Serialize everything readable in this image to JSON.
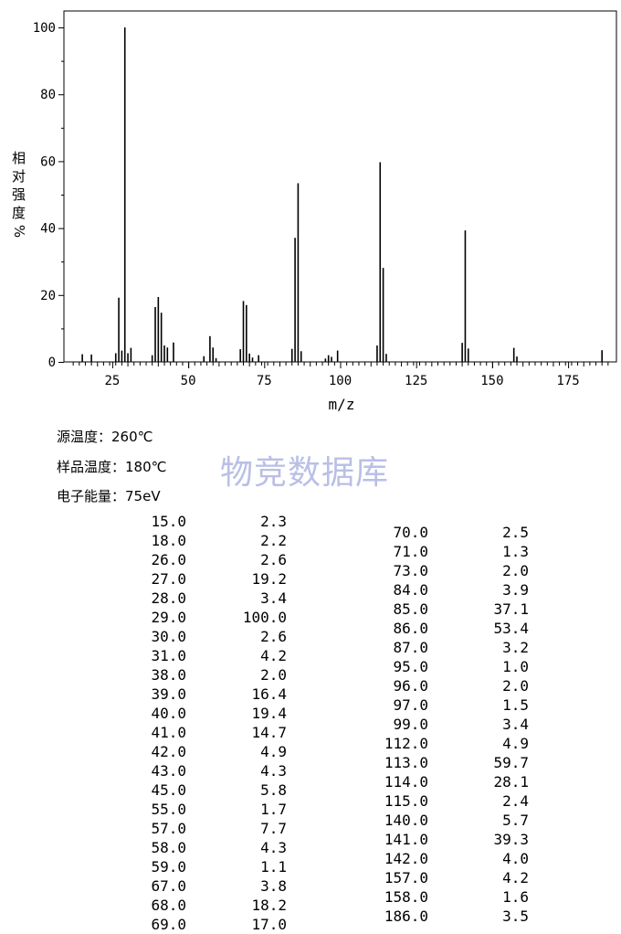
{
  "chart_data": {
    "type": "bar",
    "xlabel": "m/z",
    "ylabel": "相对强度%",
    "xlim": [
      10,
      190
    ],
    "ylim": [
      0,
      100
    ],
    "x_ticks": [
      25,
      50,
      75,
      100,
      125,
      150,
      175
    ],
    "y_ticks": [
      0,
      20,
      40,
      60,
      80,
      100
    ],
    "grid": false,
    "peaks": [
      {
        "mz": 15.0,
        "abundance": 2.3
      },
      {
        "mz": 18.0,
        "abundance": 2.2
      },
      {
        "mz": 26.0,
        "abundance": 2.6
      },
      {
        "mz": 27.0,
        "abundance": 19.2
      },
      {
        "mz": 28.0,
        "abundance": 3.4
      },
      {
        "mz": 29.0,
        "abundance": 100.0
      },
      {
        "mz": 30.0,
        "abundance": 2.6
      },
      {
        "mz": 31.0,
        "abundance": 4.2
      },
      {
        "mz": 38.0,
        "abundance": 2.0
      },
      {
        "mz": 39.0,
        "abundance": 16.4
      },
      {
        "mz": 40.0,
        "abundance": 19.4
      },
      {
        "mz": 41.0,
        "abundance": 14.7
      },
      {
        "mz": 42.0,
        "abundance": 4.9
      },
      {
        "mz": 43.0,
        "abundance": 4.3
      },
      {
        "mz": 45.0,
        "abundance": 5.8
      },
      {
        "mz": 55.0,
        "abundance": 1.7
      },
      {
        "mz": 57.0,
        "abundance": 7.7
      },
      {
        "mz": 58.0,
        "abundance": 4.3
      },
      {
        "mz": 59.0,
        "abundance": 1.1
      },
      {
        "mz": 67.0,
        "abundance": 3.8
      },
      {
        "mz": 68.0,
        "abundance": 18.2
      },
      {
        "mz": 69.0,
        "abundance": 17.0
      },
      {
        "mz": 70.0,
        "abundance": 2.5
      },
      {
        "mz": 71.0,
        "abundance": 1.3
      },
      {
        "mz": 73.0,
        "abundance": 2.0
      },
      {
        "mz": 84.0,
        "abundance": 3.9
      },
      {
        "mz": 85.0,
        "abundance": 37.1
      },
      {
        "mz": 86.0,
        "abundance": 53.4
      },
      {
        "mz": 87.0,
        "abundance": 3.2
      },
      {
        "mz": 95.0,
        "abundance": 1.0
      },
      {
        "mz": 96.0,
        "abundance": 2.0
      },
      {
        "mz": 97.0,
        "abundance": 1.5
      },
      {
        "mz": 99.0,
        "abundance": 3.4
      },
      {
        "mz": 112.0,
        "abundance": 4.9
      },
      {
        "mz": 113.0,
        "abundance": 59.7
      },
      {
        "mz": 114.0,
        "abundance": 28.1
      },
      {
        "mz": 115.0,
        "abundance": 2.4
      },
      {
        "mz": 140.0,
        "abundance": 5.7
      },
      {
        "mz": 141.0,
        "abundance": 39.3
      },
      {
        "mz": 142.0,
        "abundance": 4.0
      },
      {
        "mz": 157.0,
        "abundance": 4.2
      },
      {
        "mz": 158.0,
        "abundance": 1.6
      },
      {
        "mz": 186.0,
        "abundance": 3.5
      }
    ]
  },
  "conditions": {
    "source_temp": "源温度：260℃",
    "sample_temp": "样品温度：180℃",
    "electron_energy": "电子能量：75eV"
  },
  "watermark": "物竞数据库",
  "peak_table": {
    "left": [
      [
        "15.0",
        "2.3"
      ],
      [
        "18.0",
        "2.2"
      ],
      [
        "26.0",
        "2.6"
      ],
      [
        "27.0",
        "19.2"
      ],
      [
        "28.0",
        "3.4"
      ],
      [
        "29.0",
        "100.0"
      ],
      [
        "30.0",
        "2.6"
      ],
      [
        "31.0",
        "4.2"
      ],
      [
        "38.0",
        "2.0"
      ],
      [
        "39.0",
        "16.4"
      ],
      [
        "40.0",
        "19.4"
      ],
      [
        "41.0",
        "14.7"
      ],
      [
        "42.0",
        "4.9"
      ],
      [
        "43.0",
        "4.3"
      ],
      [
        "45.0",
        "5.8"
      ],
      [
        "55.0",
        "1.7"
      ],
      [
        "57.0",
        "7.7"
      ],
      [
        "58.0",
        "4.3"
      ],
      [
        "59.0",
        "1.1"
      ],
      [
        "67.0",
        "3.8"
      ],
      [
        "68.0",
        "18.2"
      ],
      [
        "69.0",
        "17.0"
      ]
    ],
    "right": [
      [
        "70.0",
        "2.5"
      ],
      [
        "71.0",
        "1.3"
      ],
      [
        "73.0",
        "2.0"
      ],
      [
        "84.0",
        "3.9"
      ],
      [
        "85.0",
        "37.1"
      ],
      [
        "86.0",
        "53.4"
      ],
      [
        "87.0",
        "3.2"
      ],
      [
        "95.0",
        "1.0"
      ],
      [
        "96.0",
        "2.0"
      ],
      [
        "97.0",
        "1.5"
      ],
      [
        "99.0",
        "3.4"
      ],
      [
        "112.0",
        "4.9"
      ],
      [
        "113.0",
        "59.7"
      ],
      [
        "114.0",
        "28.1"
      ],
      [
        "115.0",
        "2.4"
      ],
      [
        "140.0",
        "5.7"
      ],
      [
        "141.0",
        "39.3"
      ],
      [
        "142.0",
        "4.0"
      ],
      [
        "157.0",
        "4.2"
      ],
      [
        "158.0",
        "1.6"
      ],
      [
        "186.0",
        "3.5"
      ]
    ]
  }
}
